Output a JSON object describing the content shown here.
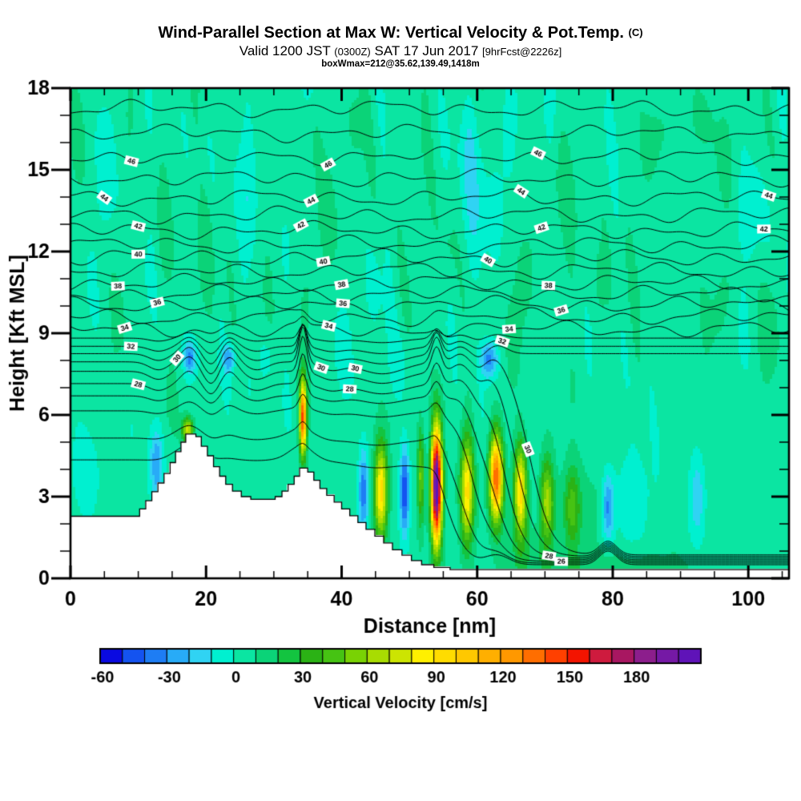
{
  "header": {
    "title": "Wind-Parallel Section at Max W: Vertical Velocity & Pot.Temp.",
    "title_suffix": "(C)",
    "valid_prefix": "Valid 1200 JST",
    "valid_ztime": "(0300Z)",
    "valid_date": "SAT 17 Jun 2017",
    "valid_fcst": "[9hrFcst@2226z]",
    "wmax_line": "boxWmax=212@35.62,139.49,1418m"
  },
  "chart_data": {
    "type": "heatmap",
    "subtype": "vertical-cross-section-filled-contour",
    "title": "Wind-Parallel Section at Max W: Vertical Velocity & Pot.Temp. (C)",
    "subtitle": "Valid 1200 JST (0300Z) SAT 17 Jun 2017 [9hrFcst@2226z]",
    "annotation": "boxWmax=212@35.62,139.49,1418m",
    "max_w_cm_s": 212,
    "x_axis": {
      "label": "Distance [nm]",
      "min": 0,
      "max": 106,
      "major_ticks": [
        0,
        20,
        40,
        60,
        80,
        100
      ],
      "minor_step": 5
    },
    "y_axis": {
      "label": "Height [Kft MSL]",
      "min": 0,
      "max": 18,
      "major_ticks": [
        0,
        3,
        6,
        9,
        12,
        15,
        18
      ],
      "minor_step": 1
    },
    "colorbar": {
      "label": "Vertical Velocity [cm/s]",
      "min": -60,
      "bin_width": 10,
      "tick_values": [
        -60,
        -30,
        0,
        30,
        60,
        90,
        120,
        150,
        180
      ],
      "colors": [
        "#0a0ae1",
        "#1453f0",
        "#1e7df4",
        "#28abf7",
        "#30d3f3",
        "#00f0d0",
        "#0be5a2",
        "#0bd378",
        "#13c440",
        "#2bb215",
        "#46c313",
        "#79d204",
        "#a8dc02",
        "#cce402",
        "#fff000",
        "#ffdc00",
        "#ffc800",
        "#ffaf00",
        "#ff9800",
        "#ff6e00",
        "#ff4000",
        "#f31400",
        "#ce1b3e",
        "#a81761",
        "#8c1e8c",
        "#7519a5",
        "#5f13b8"
      ]
    },
    "field": {
      "background_w": 5,
      "cells": [
        {
          "name": "downdraft-12.7nm",
          "x": 12.7,
          "sx": 1.0,
          "h": 4.2,
          "sh": 1.4,
          "amp": -33
        },
        {
          "name": "summit-updraft-17.3nm",
          "x": 17.3,
          "sx": 0.8,
          "h": 5.45,
          "sh": 0.45,
          "amp": 70
        },
        {
          "name": "wave-downdraft-17.6nm",
          "x": 17.6,
          "sx": 0.9,
          "h": 8.1,
          "sh": 0.55,
          "amp": -36
        },
        {
          "name": "wave-downdraft-23.4nm",
          "x": 23.4,
          "sx": 0.85,
          "h": 8.05,
          "sh": 0.5,
          "amp": -31
        },
        {
          "name": "narrow-updraft-34.3nm",
          "x": 34.3,
          "sx": 0.5,
          "h": 5.9,
          "sh": 1.35,
          "amp": 138
        },
        {
          "name": "downdraft-43.2nm",
          "x": 43.2,
          "sx": 0.75,
          "h": 3.2,
          "sh": 1.6,
          "amp": -44
        },
        {
          "name": "updraft-45.8nm",
          "x": 45.8,
          "sx": 0.95,
          "h": 3.2,
          "sh": 1.75,
          "amp": 92
        },
        {
          "name": "downdraft-49.3nm",
          "x": 49.3,
          "sx": 0.7,
          "h": 3.2,
          "sh": 1.6,
          "amp": -55
        },
        {
          "name": "updraft-51.7nm",
          "x": 51.7,
          "sx": 0.5,
          "h": 3.8,
          "sh": 1.8,
          "amp": 48
        },
        {
          "name": "max-updraft-54nm",
          "x": 54.0,
          "sx": 0.78,
          "h": 3.4,
          "sh": 2.1,
          "amp": 216
        },
        {
          "name": "updraft-58.5nm",
          "x": 58.5,
          "sx": 0.95,
          "h": 3.2,
          "sh": 1.9,
          "amp": 88
        },
        {
          "name": "wave-downdraft-61.8nm",
          "x": 61.8,
          "sx": 1.3,
          "h": 8.05,
          "sh": 0.7,
          "amp": -40
        },
        {
          "name": "updraft-62.8nm",
          "x": 62.8,
          "sx": 1.0,
          "h": 3.7,
          "sh": 1.6,
          "amp": 136
        },
        {
          "name": "updraft-66.4nm",
          "x": 66.4,
          "sx": 0.95,
          "h": 3.2,
          "sh": 1.7,
          "amp": 92
        },
        {
          "name": "updraft-70.3nm",
          "x": 70.3,
          "sx": 1.0,
          "h": 2.8,
          "sh": 1.6,
          "amp": 58
        },
        {
          "name": "updraft-74nm",
          "x": 74.0,
          "sx": 1.1,
          "h": 2.6,
          "sh": 1.5,
          "amp": 34
        },
        {
          "name": "downdraft-79.3nm",
          "x": 79.3,
          "sx": 0.9,
          "h": 2.6,
          "sh": 1.3,
          "amp": -40
        },
        {
          "name": "downdraft-92.5nm",
          "x": 92.5,
          "sx": 1.2,
          "h": 3.0,
          "sh": 1.7,
          "amp": -23
        }
      ],
      "streaks": [
        [
          5.5,
          1.2,
          15.5,
          2.2,
          -11
        ],
        [
          10,
          1,
          15.8,
          1.8,
          -9
        ],
        [
          25.8,
          1.3,
          13,
          3.5,
          -12
        ],
        [
          30,
          1.5,
          16.5,
          1.5,
          -9
        ],
        [
          44.5,
          1.2,
          10.5,
          1.5,
          -9
        ],
        [
          59.5,
          1.5,
          13.5,
          3.5,
          -13
        ],
        [
          65,
          1.2,
          16,
          2,
          -10
        ],
        [
          48.5,
          1.5,
          7.8,
          1.2,
          -9
        ],
        [
          100,
          2.5,
          13.5,
          1.5,
          -11
        ],
        [
          87.5,
          1.5,
          15,
          2,
          -8
        ],
        [
          2,
          2.5,
          4,
          1.8,
          -11
        ],
        [
          83,
          2.8,
          3,
          2,
          -13
        ],
        [
          13.5,
          1,
          13,
          2.5,
          10
        ],
        [
          20.5,
          1.2,
          12.5,
          2.5,
          9
        ],
        [
          36,
          1.3,
          16.5,
          1.5,
          9
        ],
        [
          42,
          1.2,
          16.5,
          1.2,
          8
        ],
        [
          55.5,
          1.3,
          12,
          1.8,
          9
        ],
        [
          67.5,
          1.5,
          11,
          1.8,
          10
        ],
        [
          72.5,
          1.5,
          15,
          2,
          9
        ],
        [
          78.5,
          1.5,
          10.5,
          1.5,
          8
        ],
        [
          85.5,
          1.8,
          15.5,
          1.8,
          9
        ],
        [
          90.5,
          1.5,
          9.5,
          1.5,
          8
        ],
        [
          96.5,
          1.8,
          10.5,
          1.5,
          9
        ],
        [
          103,
          1.5,
          9.5,
          1.5,
          9
        ],
        [
          93,
          2,
          16.8,
          1.2,
          8
        ],
        [
          75.5,
          4,
          2.5,
          1.8,
          11
        ],
        [
          67,
          3,
          1,
          1,
          9
        ],
        [
          80,
          14,
          0.35,
          0.7,
          12
        ],
        [
          35,
          1.5,
          10.5,
          1.5,
          8
        ],
        [
          29,
          1.5,
          8.2,
          0.8,
          -8
        ],
        [
          58.9,
          1.1,
          16,
          2.5,
          -12
        ]
      ]
    },
    "terrain_steps": [
      [
        0,
        2.28
      ],
      [
        10.2,
        2.55
      ],
      [
        11.1,
        2.85
      ],
      [
        12.0,
        3.18
      ],
      [
        12.9,
        3.5
      ],
      [
        13.8,
        3.85
      ],
      [
        14.7,
        4.25
      ],
      [
        15.5,
        4.65
      ],
      [
        16.3,
        5.0
      ],
      [
        17.0,
        5.3
      ],
      [
        18.5,
        5.2
      ],
      [
        19.3,
        4.85
      ],
      [
        20.2,
        4.5
      ],
      [
        21.1,
        4.1
      ],
      [
        22.0,
        3.75
      ],
      [
        22.9,
        3.45
      ],
      [
        23.9,
        3.2
      ],
      [
        25.2,
        3.0
      ],
      [
        26.6,
        2.9
      ],
      [
        30.2,
        3.0
      ],
      [
        31.2,
        3.2
      ],
      [
        32.1,
        3.45
      ],
      [
        33.0,
        3.75
      ],
      [
        33.8,
        4.05
      ],
      [
        35.0,
        3.9
      ],
      [
        35.9,
        3.6
      ],
      [
        36.8,
        3.3
      ],
      [
        37.8,
        3.05
      ],
      [
        38.9,
        2.8
      ],
      [
        40.0,
        2.55
      ],
      [
        41.2,
        2.3
      ],
      [
        42.4,
        2.05
      ],
      [
        43.6,
        1.8
      ],
      [
        44.9,
        1.55
      ],
      [
        46.2,
        1.3
      ],
      [
        47.5,
        1.05
      ],
      [
        48.9,
        0.85
      ],
      [
        50.3,
        0.65
      ],
      [
        51.8,
        0.5
      ],
      [
        53.6,
        0.4
      ],
      [
        56.0,
        0.32
      ],
      [
        106,
        0.32
      ]
    ],
    "theta": {
      "units": "C",
      "contour_interval": 1,
      "labeled_every": 2,
      "base_heights": {
        "24": 4.35,
        "25": 5.15,
        "26": 6.15,
        "27": 6.7,
        "28": 7.15,
        "29": 7.6,
        "30": 7.95,
        "31": 8.25,
        "32": 8.52,
        "33": 8.82,
        "34": 9.15,
        "35": 9.6,
        "36": 10.05,
        "37": 10.45,
        "38": 10.85,
        "39": 11.3,
        "40": 11.78,
        "41": 12.25,
        "42": 12.78,
        "43": 13.35,
        "44": 13.98,
        "45": 14.7,
        "46": 15.5,
        "47": 16.35,
        "48": 17.25
      },
      "labels": [
        [
          46,
          9,
          15.6
        ],
        [
          46,
          38,
          15.95
        ],
        [
          46,
          69,
          15.9
        ],
        [
          44,
          5,
          14.0
        ],
        [
          44,
          35.5,
          14.05
        ],
        [
          44,
          66.5,
          14.2
        ],
        [
          44,
          103,
          13.95
        ],
        [
          42,
          10,
          12.75
        ],
        [
          42,
          34,
          12.8
        ],
        [
          42,
          69.5,
          12.9
        ],
        [
          42,
          102.3,
          12.75
        ],
        [
          40,
          10,
          11.8
        ],
        [
          40,
          37.3,
          11.8
        ],
        [
          40,
          61.6,
          11.85
        ],
        [
          38,
          7,
          10.85
        ],
        [
          38,
          40,
          10.9
        ],
        [
          38,
          70.5,
          11.1
        ],
        [
          36,
          12.8,
          10.1
        ],
        [
          36,
          40.2,
          10.05
        ],
        [
          36,
          72.4,
          10.2
        ],
        [
          34,
          8,
          9.25
        ],
        [
          34,
          38.1,
          9.1
        ],
        [
          34,
          64.7,
          9.1
        ],
        [
          32,
          8.9,
          8.5
        ],
        [
          32,
          63.7,
          8.3
        ],
        [
          30,
          15.7,
          8.0
        ],
        [
          30,
          37,
          7.5
        ],
        [
          30,
          42,
          6.75
        ],
        [
          30,
          67.5,
          7.35
        ],
        [
          30,
          67.5,
          3.9
        ],
        [
          28,
          10,
          7.25
        ],
        [
          28,
          41.2,
          6.1
        ],
        [
          28,
          70.6,
          6.6
        ],
        [
          26,
          72.4,
          6.05
        ]
      ]
    }
  }
}
